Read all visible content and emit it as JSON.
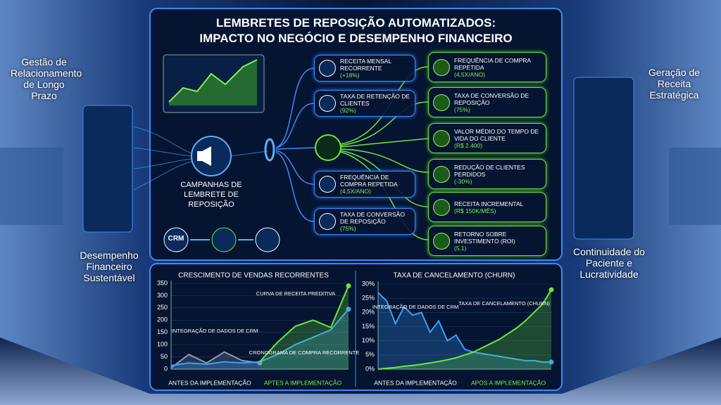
{
  "header": {
    "title": [
      "LEMBRETES DE REPOSIÇÃO AUTOMATIZADOS:",
      "IMPACTO NO NEGÓCIO E DESEMPENHO FINANCEIRO"
    ]
  },
  "side_panels": {
    "left_top": "Gestão de Relacionamento de Longo Prazo",
    "left_bottom": "Desempenho Financeiro Sustentável",
    "right_top": "Geração de Receita Estratégica",
    "right_bottom": "Continuidade do Paciente e Lucratividade"
  },
  "campaign": {
    "label": "CAMPANHAS DE LEMBRETE DE REPOSIÇÃO",
    "crm": "CRM"
  },
  "middle_cards": [
    {
      "title": "RECEITA MENSAL RECORRENTE",
      "value": "(+18%)"
    },
    {
      "title": "TAXA DE RETENÇÃO DE CLIENTES",
      "value": "(92%)"
    },
    {
      "title": "FREQUÊNCIA DE COMPRA REPETIDA",
      "value": "(4,5X/ANO)"
    },
    {
      "title": "TAXA DE CONVERSÃO DE REPOSIÇÃO",
      "value": "(75%)"
    }
  ],
  "right_cards": [
    {
      "title": "FREQUÊNCIA DE COMPRA REPETIDA",
      "value": "(4,5X/ANO)"
    },
    {
      "title": "TAXA DE CONVERSÃO DE REPOSIÇÃO",
      "value": "(75%)"
    },
    {
      "title": "VALOR MÉDIO DO TEMPO DE VIDA DO CLIENTE",
      "value": "(R$ 2.400)"
    },
    {
      "title": "REDUÇÃO DE CLIENTES PERDIDOS",
      "value": "(-30%)"
    },
    {
      "title": "RECEITA INCREMENTAL",
      "value": "(R$ 150K/MÊS)"
    },
    {
      "title": "RETORNO SOBRE INVESTIMENTO (ROI)",
      "value": "(5,1)"
    }
  ],
  "chart_data": [
    {
      "type": "line",
      "title": "CRESCIMENTO DE VENDAS RECORRENTES",
      "x": [
        0,
        1,
        2,
        3,
        4,
        5,
        6,
        7,
        8,
        9,
        10
      ],
      "xlim": [
        0,
        10
      ],
      "ylim": [
        0,
        350
      ],
      "yticks": [
        0,
        50,
        100,
        150,
        200,
        250,
        300,
        350
      ],
      "series": [
        {
          "color": "#8c9ab5",
          "values": [
            5,
            60,
            25,
            70,
            35,
            25,
            null,
            null,
            null,
            null,
            null
          ]
        },
        {
          "color": "#3aa0ff",
          "values": [
            15,
            25,
            20,
            30,
            25,
            30,
            60,
            100,
            130,
            160,
            245
          ]
        },
        {
          "color": "#6be83a",
          "values": [
            null,
            null,
            null,
            null,
            null,
            30,
            110,
            175,
            200,
            170,
            340
          ]
        }
      ],
      "annotations": [
        "INTEGRAÇÃO DE DADOS DE CRM",
        "CURVA DE RECEITA PREDITIVA",
        "CRONOGRAMA DE COMPRA RECORRENTE"
      ],
      "phase_labels": [
        "ANTES DA IMPLEMENTAÇÃO",
        "APTES A IMPLEMENTAÇÃO"
      ]
    },
    {
      "type": "line",
      "title": "TAXA DE CANCELAMENTO (CHURN)",
      "x": [
        0,
        1,
        2,
        3,
        4,
        5,
        6,
        7,
        8,
        9,
        10,
        11,
        12,
        13,
        14,
        15,
        16,
        17,
        18,
        19,
        20
      ],
      "xlim": [
        0,
        20
      ],
      "ylim": [
        0,
        30
      ],
      "yticks": [
        {
          "value": 0,
          "label": "0%"
        },
        {
          "value": 5,
          "label": "5%"
        },
        {
          "value": 10,
          "label": "10%"
        },
        {
          "value": 15,
          "label": "15%"
        },
        {
          "value": 20,
          "label": "20%"
        },
        {
          "value": 25,
          "label": "25%"
        },
        {
          "value": 30,
          "label": "30%"
        }
      ],
      "series": [
        {
          "color": "#3aa0ff",
          "values": [
            27,
            24,
            16,
            22,
            19,
            20,
            13,
            17,
            10,
            12,
            7,
            6,
            5.5,
            5,
            4.5,
            4,
            3.5,
            3,
            3,
            2.5,
            2.5
          ]
        },
        {
          "color": "#6be83a",
          "values": [
            0,
            0.3,
            0.6,
            1,
            1.3,
            1.7,
            2.2,
            2.7,
            3.3,
            4,
            5,
            6,
            7.5,
            9,
            10.5,
            12.5,
            14.5,
            17,
            20,
            23,
            28
          ]
        }
      ],
      "annotations": [
        "INTEGRAÇÃO DE DADOS DE CRM",
        "TAXA DE CANCELAMENTO (CHURN)"
      ],
      "phase_labels": [
        "ANTES DA IMPLEMENTAÇÃO",
        "APÓS A IMPLEMENTAÇÃO"
      ]
    }
  ]
}
